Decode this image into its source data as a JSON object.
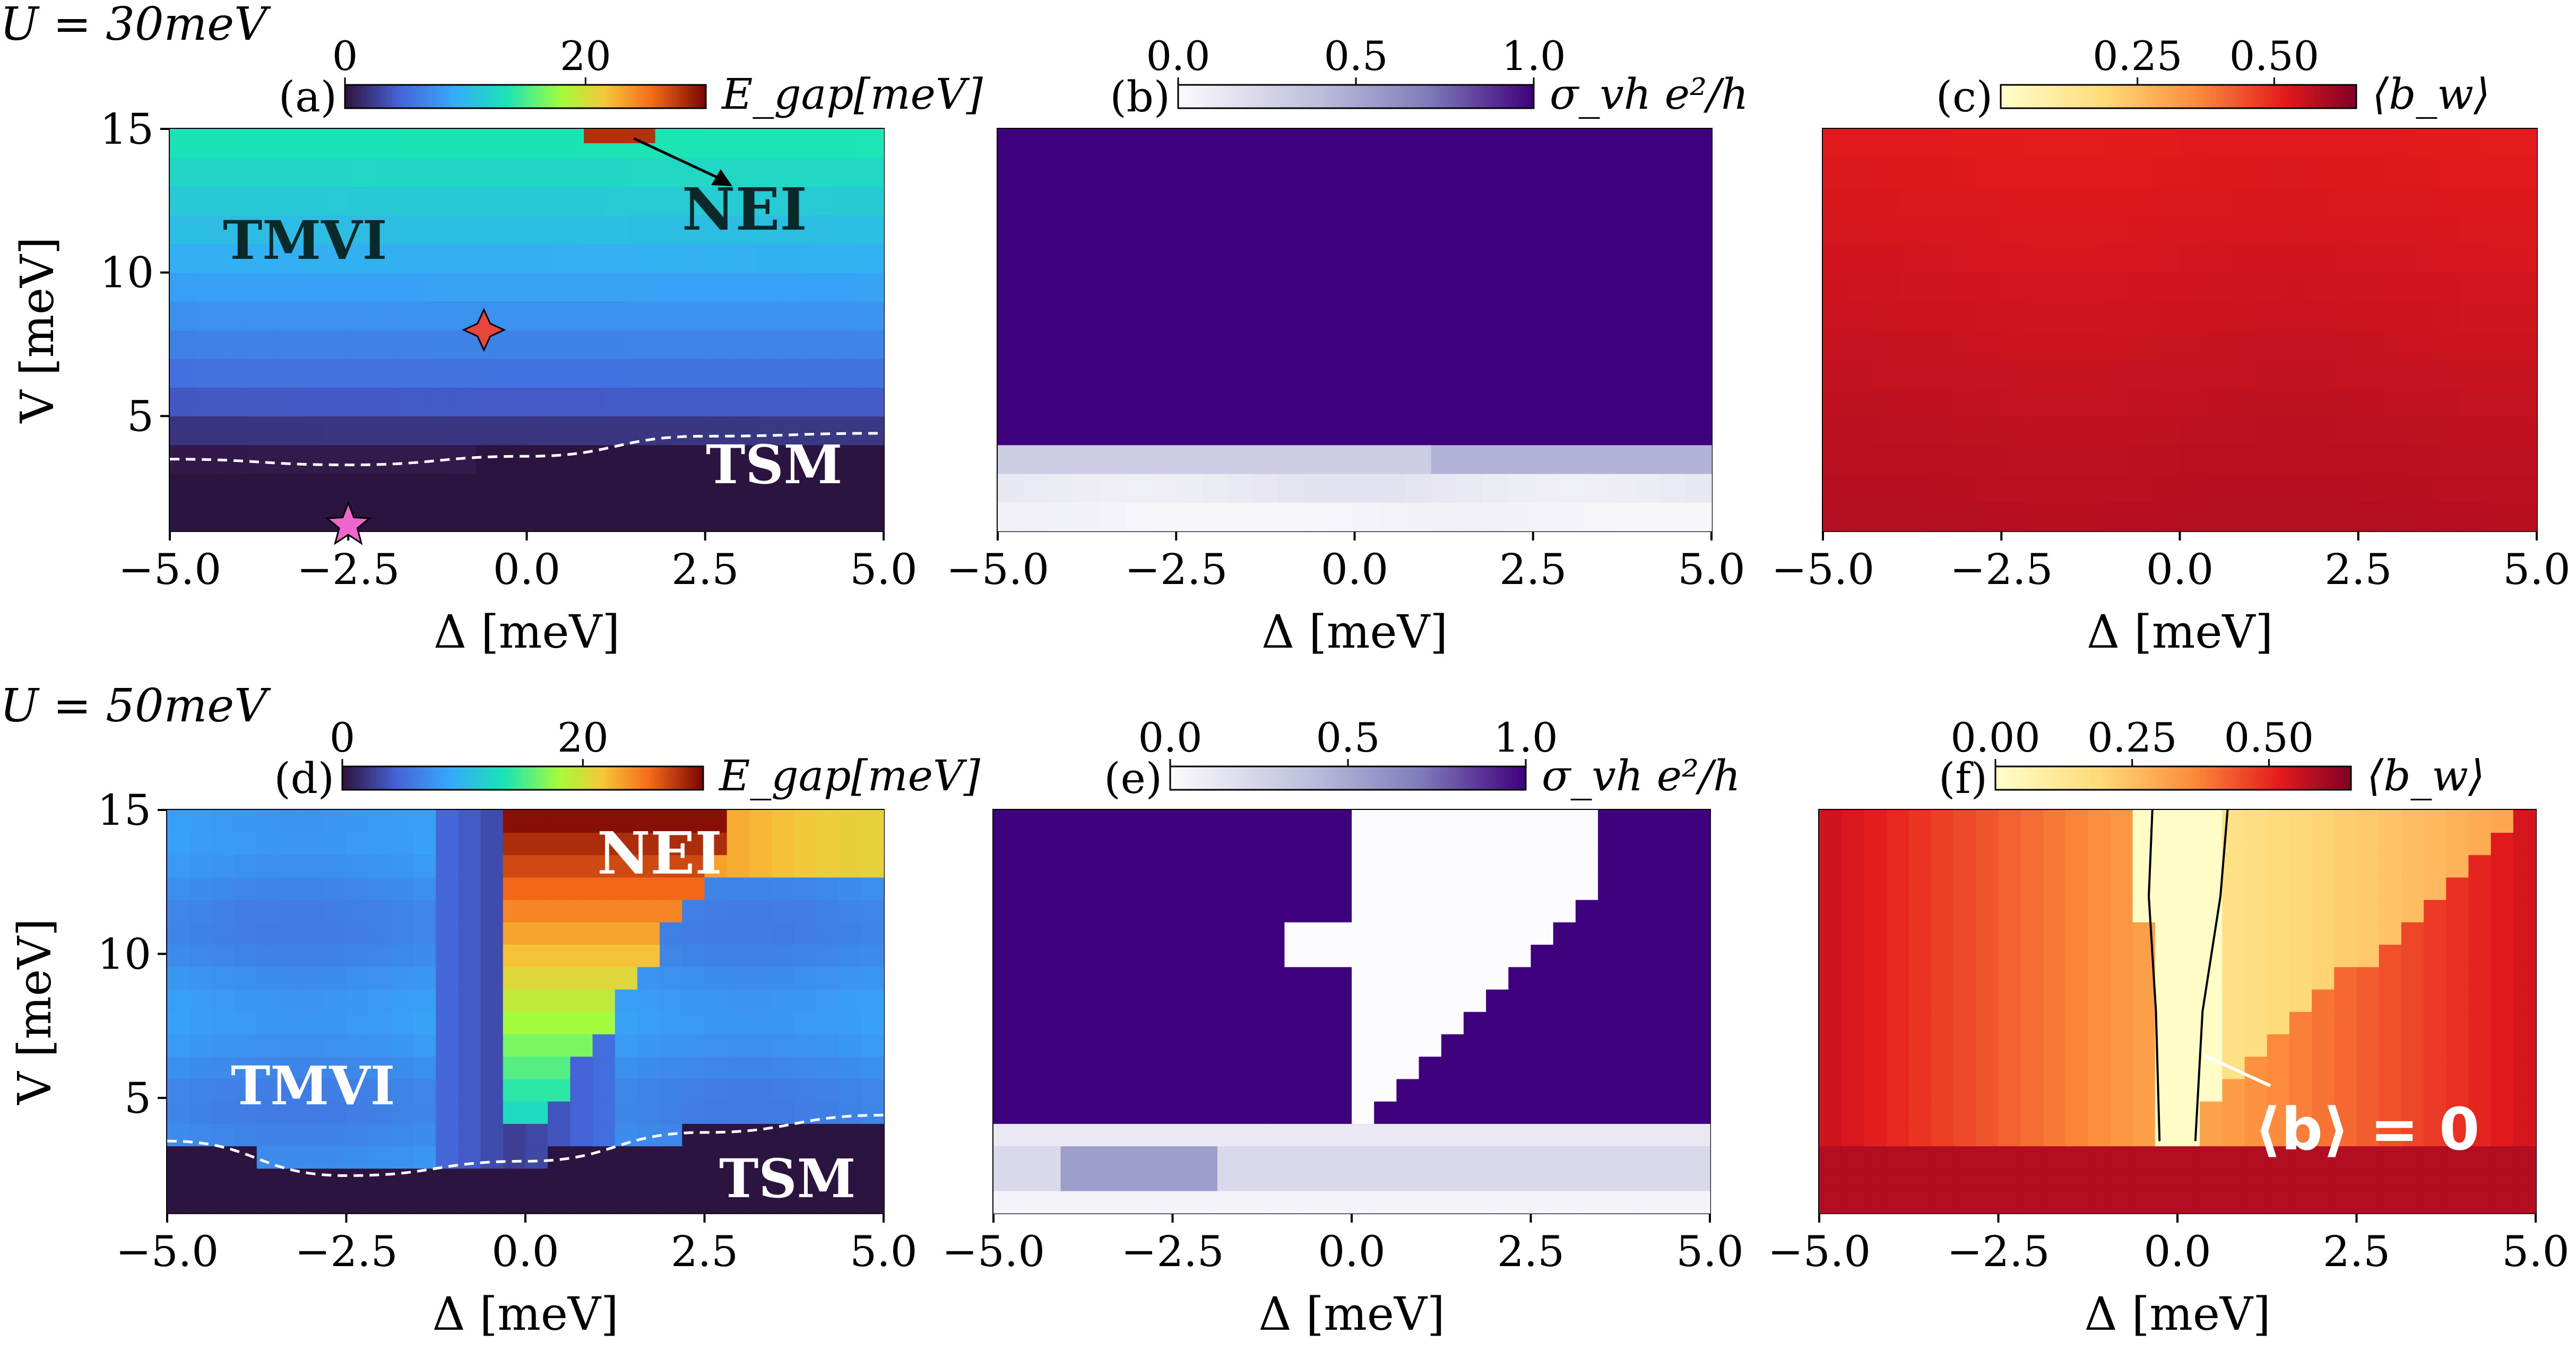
{
  "figure": {
    "row_labels": [
      "U = 30meV",
      "U = 50meV"
    ]
  },
  "colors": {
    "tmvi_blue": "#3a8ff0",
    "tsm_dark": "#2b1540",
    "vh_purple": "#3f007d",
    "bw_red": "#c4161c"
  },
  "chart_data": [
    {
      "type": "heatmap",
      "panel_label": "(a)",
      "colorbar_label": "E_gap[meV]",
      "colorbar_ticks": [
        "0",
        "20"
      ],
      "colorbar_range": [
        0,
        30
      ],
      "colormap": "turbo",
      "xlabel": "Δ [meV]",
      "ylabel": "V [meV]",
      "xlim": [
        -5.0,
        5.0
      ],
      "ylim": [
        1,
        15
      ],
      "xticks": [
        "−5.0",
        "−2.5",
        "0.0",
        "2.5",
        "5.0"
      ],
      "yticks": [
        "5",
        "10",
        "15"
      ],
      "annotations": [
        "TMVI",
        "NEI",
        "TSM"
      ],
      "markers": [
        {
          "shape": "star-4",
          "x": -0.6,
          "y": 8.0
        },
        {
          "shape": "star-5",
          "x": -2.5,
          "y": 1.2
        }
      ],
      "phase_boundary": [
        [
          -5,
          3.5
        ],
        [
          -2.5,
          3.3
        ],
        [
          0,
          3.6
        ],
        [
          2.5,
          4.3
        ],
        [
          5,
          4.4
        ]
      ],
      "rows_V": [
        1.5,
        2.5,
        3.5,
        4.5,
        5.5,
        6.5,
        7.5,
        8.5,
        9.5,
        10.5,
        11.5,
        12.5,
        13.5,
        14.5
      ],
      "row_values_meV": [
        0.3,
        0.3,
        0.5,
        2,
        4,
        5.5,
        6.5,
        7.5,
        8.5,
        9.5,
        10.5,
        11.5,
        12.5,
        13.5
      ],
      "nei_region": {
        "x": [
          0.8,
          1.8
        ],
        "y": [
          14.5,
          15
        ],
        "value": 28
      }
    },
    {
      "type": "heatmap",
      "panel_label": "(b)",
      "colorbar_label": "σ_vh e²/h",
      "colorbar_ticks": [
        "0.0",
        "0.5",
        "1.0"
      ],
      "colorbar_range": [
        0,
        1
      ],
      "colormap": "Purples",
      "xlabel": "Δ [meV]",
      "xlim": [
        -5.0,
        5.0
      ],
      "ylim": [
        1,
        15
      ],
      "xticks": [
        "−5.0",
        "−2.5",
        "0.0",
        "2.5",
        "5.0"
      ],
      "main_value": 1.0,
      "low_rows": [
        {
          "V": [
            1,
            2
          ],
          "value": 0.05
        },
        {
          "V": [
            2,
            3
          ],
          "value": 0.12
        },
        {
          "V": [
            3,
            4
          ],
          "value": 0.3
        }
      ]
    },
    {
      "type": "heatmap",
      "panel_label": "(c)",
      "colorbar_label": "⟨b_w⟩",
      "colorbar_ticks": [
        "0.25",
        "0.50"
      ],
      "colorbar_range": [
        0,
        0.65
      ],
      "colormap": "YlOrRd",
      "xlabel": "Δ [meV]",
      "xlim": [
        -5.0,
        5.0
      ],
      "ylim": [
        1,
        15
      ],
      "xticks": [
        "−5.0",
        "−2.5",
        "0.0",
        "2.5",
        "5.0"
      ],
      "main_value": 0.55
    },
    {
      "type": "heatmap",
      "panel_label": "(d)",
      "colorbar_label": "E_gap[meV]",
      "colorbar_ticks": [
        "0",
        "20"
      ],
      "colorbar_range": [
        0,
        30
      ],
      "colormap": "turbo",
      "xlabel": "Δ [meV]",
      "ylabel": "V [meV]",
      "xlim": [
        -5.0,
        5.0
      ],
      "ylim": [
        1,
        15
      ],
      "xticks": [
        "−5.0",
        "−2.5",
        "0.0",
        "2.5",
        "5.0"
      ],
      "yticks": [
        "5",
        "10",
        "15"
      ],
      "annotations": [
        "NEI",
        "TMVI",
        "TSM"
      ],
      "phase_boundary": [
        [
          -5,
          3.5
        ],
        [
          -2.5,
          2.3
        ],
        [
          0,
          2.8
        ],
        [
          2.5,
          3.8
        ],
        [
          5,
          4.4
        ]
      ]
    },
    {
      "type": "heatmap",
      "panel_label": "(e)",
      "colorbar_label": "σ_vh e²/h",
      "colorbar_ticks": [
        "0.0",
        "0.5",
        "1.0"
      ],
      "colorbar_range": [
        0,
        1
      ],
      "colormap": "Purples",
      "xlabel": "Δ [meV]",
      "xlim": [
        -5.0,
        5.0
      ],
      "ylim": [
        1,
        15
      ],
      "xticks": [
        "−5.0",
        "−2.5",
        "0.0",
        "2.5",
        "5.0"
      ]
    },
    {
      "type": "heatmap",
      "panel_label": "(f)",
      "colorbar_label": "⟨b_w⟩",
      "colorbar_ticks": [
        "0.00",
        "0.25",
        "0.50"
      ],
      "colorbar_range": [
        0,
        0.65
      ],
      "colormap": "YlOrRd",
      "xlabel": "Δ [meV]",
      "xlim": [
        -5.0,
        5.0
      ],
      "ylim": [
        1,
        15
      ],
      "xticks": [
        "−5.0",
        "−2.5",
        "0.0",
        "2.5",
        "5.0"
      ],
      "annotations": [
        "⟨b⟩ = 0"
      ]
    }
  ]
}
